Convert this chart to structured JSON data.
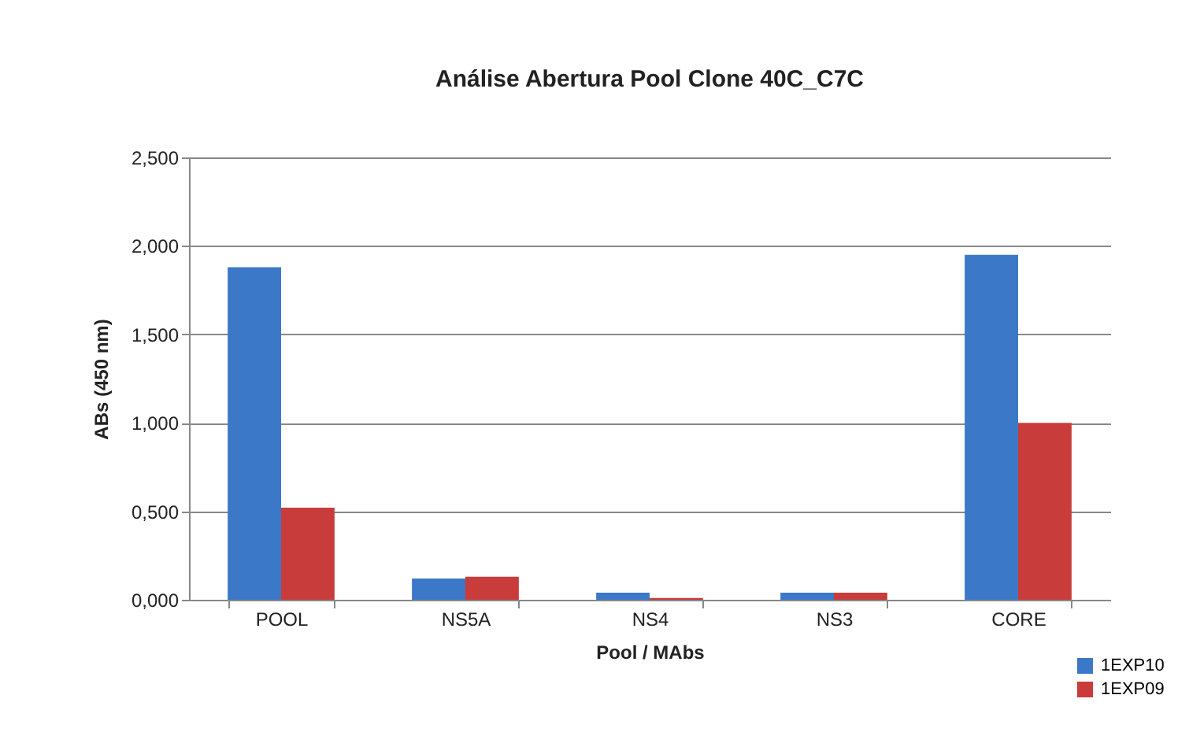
{
  "chart_data": {
    "type": "bar",
    "title": "Análise Abertura Pool Clone 40C_C7C",
    "xlabel": "Pool / MAbs",
    "ylabel": "ABs (450 nm)",
    "categories": [
      "POOL",
      "NS5A",
      "NS4",
      "NS3",
      "CORE"
    ],
    "series": [
      {
        "name": "1EXP10",
        "color": "#3c78c8",
        "values": [
          1.88,
          0.12,
          0.04,
          0.04,
          1.95
        ]
      },
      {
        "name": "1EXP09",
        "color": "#c83c3c",
        "values": [
          0.52,
          0.13,
          0.01,
          0.04,
          1.0
        ]
      }
    ],
    "ylim": [
      0,
      2.5
    ],
    "yticks": [
      {
        "value": 0,
        "label": "0,000"
      },
      {
        "value": 0.5,
        "label": "0,500"
      },
      {
        "value": 1,
        "label": "1,000"
      },
      {
        "value": 1.5,
        "label": "1,500"
      },
      {
        "value": 2,
        "label": "2,000"
      },
      {
        "value": 2.5,
        "label": "2,500"
      }
    ],
    "grid": "y",
    "legend": "bottom right"
  }
}
